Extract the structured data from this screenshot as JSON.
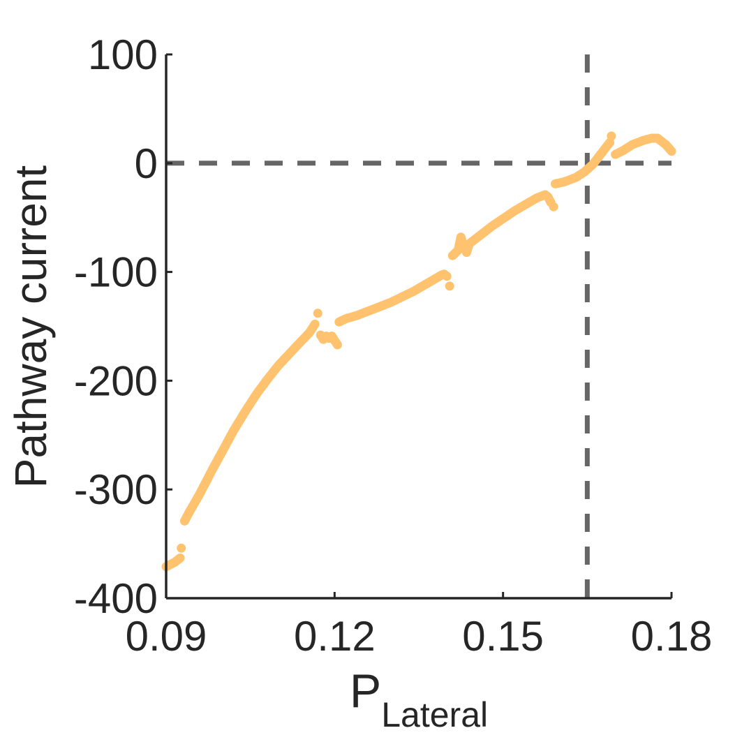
{
  "chart_data": {
    "type": "scatter",
    "title": "",
    "xlabel": "P",
    "xlabel_subscript": "Lateral",
    "ylabel": "Pathway current",
    "xlim": [
      0.09,
      0.18
    ],
    "ylim": [
      -400,
      100
    ],
    "x_ticks": [
      0.09,
      0.12,
      0.15,
      0.18
    ],
    "x_tick_labels": [
      "0.09",
      "0.12",
      "0.15",
      "0.18"
    ],
    "y_ticks": [
      -400,
      -300,
      -200,
      -100,
      0,
      100
    ],
    "y_tick_labels": [
      "-400",
      "-300",
      "-200",
      "-100",
      "0",
      "100"
    ],
    "grid": false,
    "box": false,
    "reference_lines": [
      {
        "orientation": "horizontal",
        "y": 0,
        "style": "dashed",
        "color": "#666666"
      },
      {
        "orientation": "vertical",
        "x": 0.165,
        "style": "dashed",
        "color": "#666666"
      }
    ],
    "series": [
      {
        "color": "#FFC26E",
        "segments": [
          [
            [
              0.09,
              -371
            ],
            [
              0.0915,
              -367
            ],
            [
              0.0925,
              -363
            ]
          ],
          [
            [
              0.0927,
              -354
            ]
          ],
          [
            [
              0.0933,
              -329
            ],
            [
              0.094,
              -322
            ],
            [
              0.096,
              -304
            ],
            [
              0.098,
              -284
            ],
            [
              0.1,
              -265
            ],
            [
              0.102,
              -246
            ],
            [
              0.104,
              -229
            ],
            [
              0.106,
              -213
            ],
            [
              0.108,
              -199
            ],
            [
              0.11,
              -186
            ],
            [
              0.112,
              -175
            ],
            [
              0.114,
              -164
            ],
            [
              0.1155,
              -156
            ],
            [
              0.1165,
              -148
            ]
          ],
          [
            [
              0.117,
              -138
            ]
          ],
          [
            [
              0.1175,
              -158
            ],
            [
              0.118,
              -162
            ],
            [
              0.1185,
              -159
            ],
            [
              0.119,
              -161
            ],
            [
              0.1195,
              -159
            ],
            [
              0.12,
              -163
            ],
            [
              0.1205,
              -167
            ]
          ],
          [
            [
              0.1208,
              -146
            ],
            [
              0.122,
              -143
            ],
            [
              0.124,
              -140
            ],
            [
              0.126,
              -136
            ],
            [
              0.128,
              -132
            ],
            [
              0.13,
              -128
            ],
            [
              0.132,
              -123
            ],
            [
              0.134,
              -118
            ],
            [
              0.136,
              -112
            ],
            [
              0.138,
              -106
            ],
            [
              0.139,
              -103
            ],
            [
              0.1395,
              -102
            ],
            [
              0.14,
              -104
            ]
          ],
          [
            [
              0.1405,
              -113
            ]
          ],
          [
            [
              0.141,
              -85
            ],
            [
              0.142,
              -80
            ],
            [
              0.1425,
              -68
            ],
            [
              0.143,
              -78
            ]
          ],
          [
            [
              0.1435,
              -82
            ],
            [
              0.144,
              -74
            ],
            [
              0.146,
              -66
            ],
            [
              0.148,
              -58
            ],
            [
              0.15,
              -51
            ],
            [
              0.152,
              -44
            ],
            [
              0.154,
              -38
            ],
            [
              0.156,
              -32
            ],
            [
              0.1575,
              -29
            ],
            [
              0.158,
              -31
            ],
            [
              0.1585,
              -36
            ]
          ],
          [
            [
              0.159,
              -40
            ]
          ],
          [
            [
              0.1593,
              -19
            ],
            [
              0.161,
              -17
            ],
            [
              0.163,
              -13
            ],
            [
              0.1645,
              -8
            ],
            [
              0.166,
              -1
            ],
            [
              0.1675,
              9
            ],
            [
              0.169,
              19
            ]
          ],
          [
            [
              0.1693,
              25
            ]
          ],
          [
            [
              0.17,
              8
            ],
            [
              0.1715,
              12
            ],
            [
              0.173,
              17
            ],
            [
              0.175,
              21
            ],
            [
              0.1765,
              23
            ],
            [
              0.1775,
              23
            ],
            [
              0.179,
              17
            ],
            [
              0.18,
              11
            ]
          ]
        ]
      }
    ]
  }
}
